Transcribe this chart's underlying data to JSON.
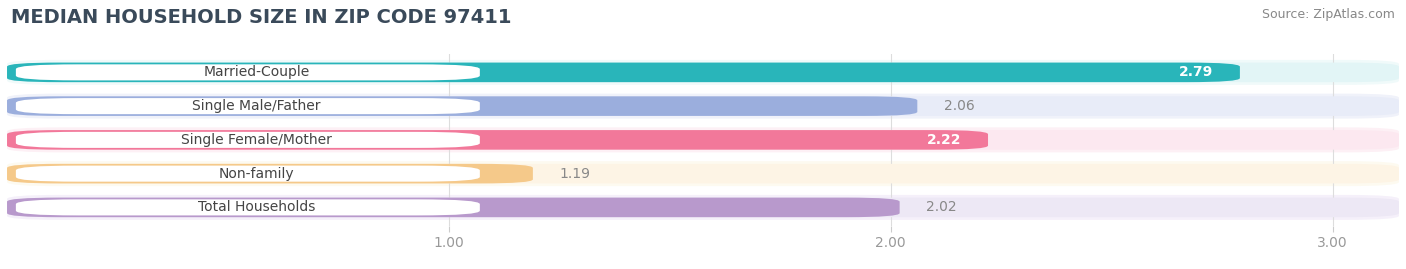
{
  "title": "MEDIAN HOUSEHOLD SIZE IN ZIP CODE 97411",
  "source": "Source: ZipAtlas.com",
  "categories": [
    "Married-Couple",
    "Single Male/Father",
    "Single Female/Mother",
    "Non-family",
    "Total Households"
  ],
  "values": [
    2.79,
    2.06,
    2.22,
    1.19,
    2.02
  ],
  "bar_colors": [
    "#29b5ba",
    "#9baedd",
    "#f2789a",
    "#f5c98a",
    "#b899cc"
  ],
  "bar_bg_colors": [
    "#e2f5f6",
    "#e8ecf8",
    "#fce8f0",
    "#fdf4e5",
    "#ede8f5"
  ],
  "row_bg_colors": [
    "#f0fafa",
    "#f0f2fa",
    "#fdf0f5",
    "#fdfaf0",
    "#f5f0fa"
  ],
  "xlim": [
    0,
    3.15
  ],
  "xticks": [
    1.0,
    2.0,
    3.0
  ],
  "xtick_labels": [
    "1.00",
    "2.00",
    "3.00"
  ],
  "value_inside": [
    true,
    false,
    true,
    false,
    false
  ],
  "title_fontsize": 14,
  "source_fontsize": 9,
  "bar_label_fontsize": 10,
  "value_fontsize": 10,
  "tick_fontsize": 10,
  "bar_height": 0.58,
  "background_color": "#ffffff",
  "grid_color": "#dddddd",
  "label_text_color": "#444444",
  "value_color_outside": "#888888",
  "value_color_inside": "#ffffff"
}
